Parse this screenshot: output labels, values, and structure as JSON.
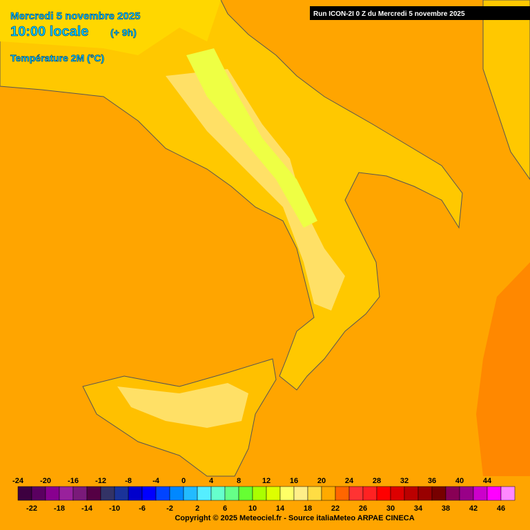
{
  "header": {
    "date": "Mercredi 5 novembre 2025",
    "time": "10:00 locale",
    "offset": "(+ 9h)",
    "field": "Température 2M (°C)",
    "run": "Run ICON-2I 0 Z du Mercredi 5 novembre 2025"
  },
  "legend": {
    "ticks": [
      -24,
      -22,
      -20,
      -18,
      -16,
      -14,
      -12,
      -10,
      -8,
      -6,
      -4,
      -2,
      0,
      2,
      4,
      6,
      8,
      10,
      12,
      14,
      16,
      18,
      20,
      22,
      24,
      26,
      28,
      30,
      32,
      34,
      36,
      38,
      40,
      42,
      44,
      46
    ],
    "colors": [
      "#3d0040",
      "#5a0060",
      "#88008f",
      "#99219c",
      "#7a1a7a",
      "#550044",
      "#333366",
      "#1a3399",
      "#0000cc",
      "#0000ff",
      "#0044ff",
      "#0088ff",
      "#22bbff",
      "#55eeff",
      "#66ffcc",
      "#66ff88",
      "#66ff33",
      "#aaff00",
      "#ddff00",
      "#ffff66",
      "#ffee88",
      "#ffdd44",
      "#ffaa00",
      "#ff6600",
      "#ff3333",
      "#ff2222",
      "#ff0000",
      "#dd0000",
      "#bb0000",
      "#990000",
      "#770000",
      "#880055",
      "#990088",
      "#cc00cc",
      "#ff00ff",
      "#ff88ff"
    ]
  },
  "footer": {
    "copyright": "Copyright © 2025 Meteociel.fr - Source italiaMeteo ARPAE CINECA"
  }
}
